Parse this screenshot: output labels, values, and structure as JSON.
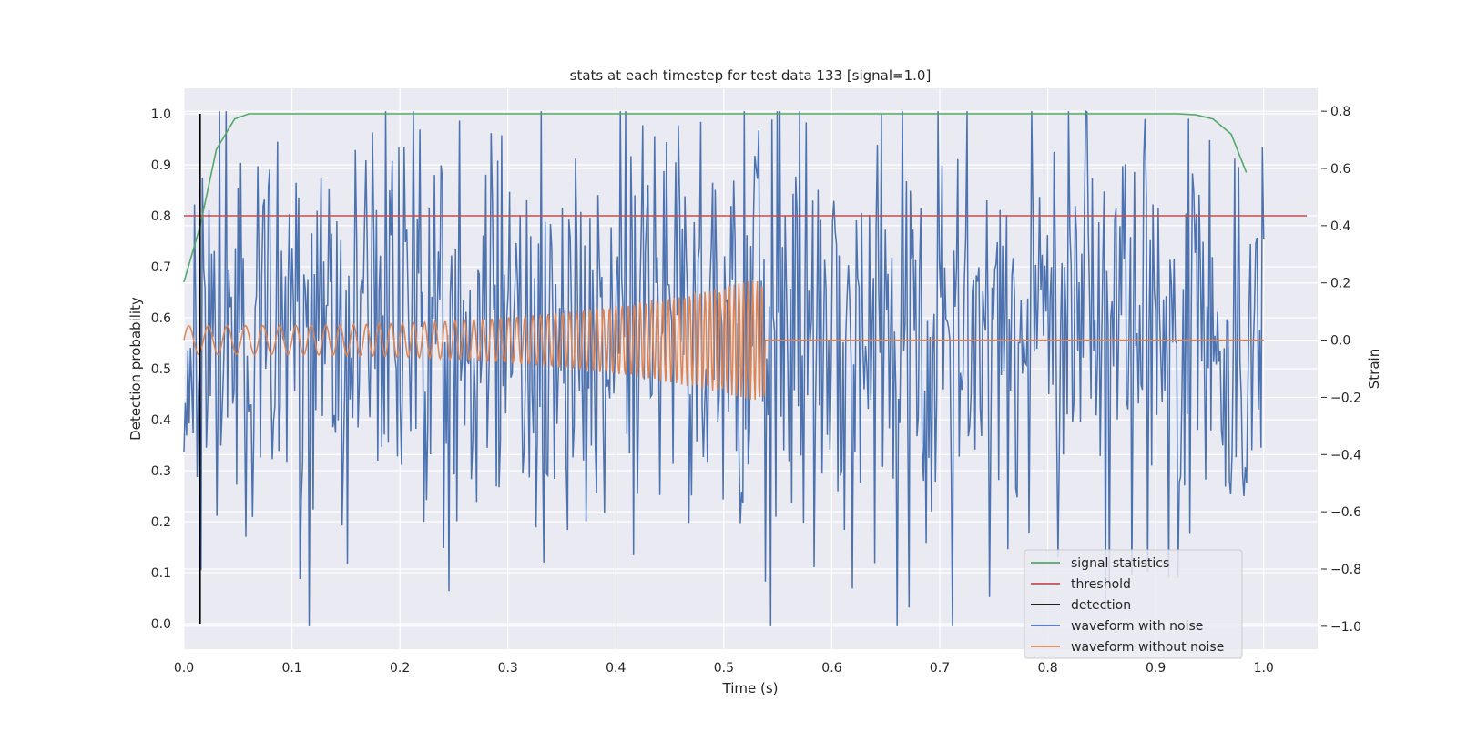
{
  "chart_data": {
    "type": "line",
    "title": "stats at each timestep for test data 133 [signal=1.0]",
    "xlabel": "Time (s)",
    "ylabel": "Detection probability",
    "ylabel_right": "Strain",
    "xlim": [
      0.0,
      1.05
    ],
    "ylim": [
      -0.05,
      1.05
    ],
    "ylim_right": [
      -1.08,
      0.88
    ],
    "x_ticks": [
      "0.0",
      "0.1",
      "0.2",
      "0.3",
      "0.4",
      "0.5",
      "0.6",
      "0.7",
      "0.8",
      "0.9",
      "1.0"
    ],
    "y_ticks": [
      "0.0",
      "0.1",
      "0.2",
      "0.3",
      "0.4",
      "0.5",
      "0.6",
      "0.7",
      "0.8",
      "0.9",
      "1.0"
    ],
    "y_ticks_right": [
      "−1.0",
      "−0.8",
      "−0.6",
      "−0.4",
      "−0.2",
      "0.0",
      "0.2",
      "0.4",
      "0.6",
      "0.8"
    ],
    "grid": true,
    "legend_position": "lower-right",
    "series": [
      {
        "name": "signal statistics",
        "axis": "left",
        "color": "#55a868",
        "x": [
          0.0,
          0.015,
          0.03,
          0.047,
          0.06,
          0.08,
          0.2,
          0.4,
          0.6,
          0.8,
          0.9,
          0.92,
          0.937,
          0.953,
          0.97,
          0.984
        ],
        "y": [
          0.67,
          0.78,
          0.93,
          0.99,
          1.0,
          1.0,
          1.0,
          1.0,
          1.0,
          1.0,
          1.0,
          1.0,
          0.998,
          0.99,
          0.96,
          0.885
        ]
      },
      {
        "name": "threshold",
        "axis": "left",
        "color": "#c44e52",
        "x": [
          0.0,
          1.04
        ],
        "y": [
          0.8,
          0.8
        ]
      },
      {
        "name": "detection",
        "axis": "left",
        "color": "#000000",
        "x": [
          0.015,
          0.015
        ],
        "y": [
          0.0,
          1.0
        ]
      },
      {
        "name": "waveform with noise",
        "axis": "right",
        "color": "#4c72b0",
        "x_range": [
          0.0,
          1.0
        ],
        "samples": 820,
        "seed": 133,
        "y_min": -1.0,
        "y_max": 0.8
      },
      {
        "name": "waveform without noise",
        "axis": "right",
        "color": "#dd8452",
        "x_range": [
          0.0,
          1.0
        ],
        "chirp_end": 0.538,
        "amplitude_start": 0.05,
        "amplitude_end": 0.22
      }
    ]
  }
}
